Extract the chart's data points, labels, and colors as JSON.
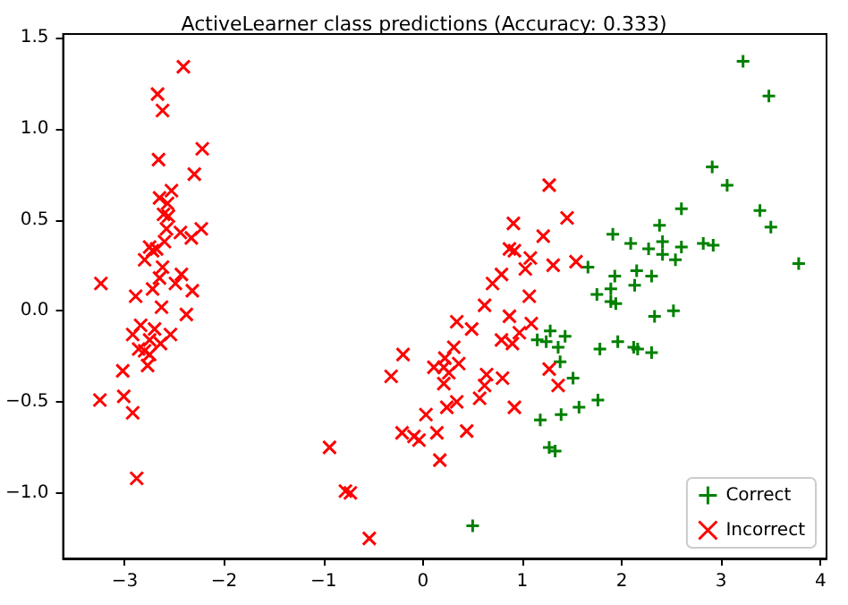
{
  "chart_data": {
    "type": "scatter",
    "title": "ActiveLearner class predictions (Accuracy: 0.333)",
    "xlim": [
      -3.62,
      4.06
    ],
    "ylim": [
      -1.36,
      1.52
    ],
    "xticks": [
      -3,
      -2,
      -1,
      0,
      1,
      2,
      3,
      4
    ],
    "yticks": [
      {
        "value": -1,
        "label": "−1.0"
      },
      {
        "value": -0.5,
        "label": "−0.5"
      },
      {
        "value": 0,
        "label": "0.0"
      },
      {
        "value": 0.5,
        "label": "0.5"
      },
      {
        "value": 1,
        "label": "1.0"
      },
      {
        "value": 1.5,
        "label": "1.5"
      }
    ],
    "legend": "bottom right",
    "marker": "cross",
    "series": [
      {
        "name": "Correct",
        "color": "#008000",
        "x": [
          1.66,
          1.75,
          1.28,
          1.43,
          1.15,
          1.24,
          1.36,
          1.78,
          1.38,
          1.51,
          1.76,
          1.57,
          1.39,
          1.18,
          1.27,
          1.33,
          0.5,
          3.22,
          3.48,
          2.91,
          3.06,
          2.6,
          3.39,
          3.5,
          2.38,
          1.91,
          2.09,
          2.27,
          2.41,
          2.6,
          2.82,
          2.92,
          2.41,
          2.54,
          3.78,
          2.15,
          1.93,
          2.3,
          2.13,
          1.89,
          1.89,
          1.94,
          2.52,
          2.33,
          1.96,
          2.12,
          2.16,
          2.3
        ],
        "values": [
          0.24,
          0.09,
          -0.11,
          -0.14,
          -0.16,
          -0.17,
          -0.2,
          -0.21,
          -0.28,
          -0.37,
          -0.49,
          -0.53,
          -0.57,
          -0.6,
          -0.75,
          -0.77,
          -1.18,
          1.37,
          1.18,
          0.79,
          0.69,
          0.56,
          0.55,
          0.46,
          0.47,
          0.42,
          0.37,
          0.34,
          0.38,
          0.35,
          0.37,
          0.36,
          0.31,
          0.28,
          0.26,
          0.22,
          0.19,
          0.19,
          0.14,
          0.12,
          0.05,
          0.04,
          0.0,
          -0.03,
          -0.17,
          -0.2,
          -0.21,
          -0.23
        ]
      },
      {
        "name": "Incorrect",
        "color": "#ff0000",
        "x": [
          -2.41,
          -2.67,
          -2.62,
          -2.22,
          -2.66,
          -2.3,
          -2.53,
          -2.65,
          -2.57,
          -2.61,
          -2.56,
          -2.58,
          -2.44,
          -2.23,
          -2.33,
          -2.6,
          -2.75,
          -2.68,
          -2.72,
          -2.8,
          -2.62,
          -2.43,
          -2.65,
          -3.24,
          -2.49,
          -2.72,
          -2.32,
          -2.89,
          -2.63,
          -2.38,
          -2.84,
          -2.7,
          -2.92,
          -2.54,
          -2.75,
          -2.64,
          -2.86,
          -2.8,
          -2.75,
          -2.77,
          -3.02,
          -3.25,
          -3.01,
          -2.92,
          -2.88,
          1.27,
          0.91,
          1.45,
          1.21,
          0.87,
          0.92,
          1.08,
          1.31,
          1.03,
          1.54,
          0.79,
          0.7,
          1.07,
          0.62,
          0.87,
          0.34,
          0.49,
          1.09,
          0.97,
          0.79,
          0.9,
          -0.2,
          0.31,
          0.22,
          0.36,
          0.11,
          0.21,
          0.26,
          -0.32,
          0.64,
          0.8,
          0.21,
          0.62,
          1.27,
          1.36,
          0.57,
          0.34,
          0.24,
          0.92,
          0.03,
          -0.21,
          0.14,
          -0.09,
          -0.04,
          0.44,
          -0.94,
          0.17,
          -0.78,
          -0.73,
          -0.54
        ],
        "values": [
          1.34,
          1.19,
          1.1,
          0.89,
          0.83,
          0.75,
          0.66,
          0.62,
          0.59,
          0.53,
          0.52,
          0.45,
          0.43,
          0.45,
          0.4,
          0.38,
          0.35,
          0.34,
          0.33,
          0.28,
          0.24,
          0.2,
          0.18,
          0.15,
          0.15,
          0.12,
          0.11,
          0.08,
          0.02,
          -0.02,
          -0.08,
          -0.1,
          -0.13,
          -0.13,
          -0.16,
          -0.18,
          -0.21,
          -0.22,
          -0.24,
          -0.3,
          -0.33,
          -0.49,
          -0.47,
          -0.56,
          -0.92,
          0.69,
          0.48,
          0.51,
          0.41,
          0.34,
          0.33,
          0.29,
          0.25,
          0.23,
          0.27,
          0.2,
          0.15,
          0.08,
          0.03,
          -0.03,
          -0.06,
          -0.1,
          -0.07,
          -0.12,
          -0.16,
          -0.18,
          -0.24,
          -0.2,
          -0.26,
          -0.29,
          -0.31,
          -0.31,
          -0.34,
          -0.36,
          -0.35,
          -0.37,
          -0.4,
          -0.41,
          -0.32,
          -0.41,
          -0.48,
          -0.5,
          -0.53,
          -0.53,
          -0.57,
          -0.67,
          -0.67,
          -0.69,
          -0.71,
          -0.66,
          -0.75,
          -0.82,
          -0.99,
          -1.0,
          -1.25
        ]
      }
    ]
  }
}
